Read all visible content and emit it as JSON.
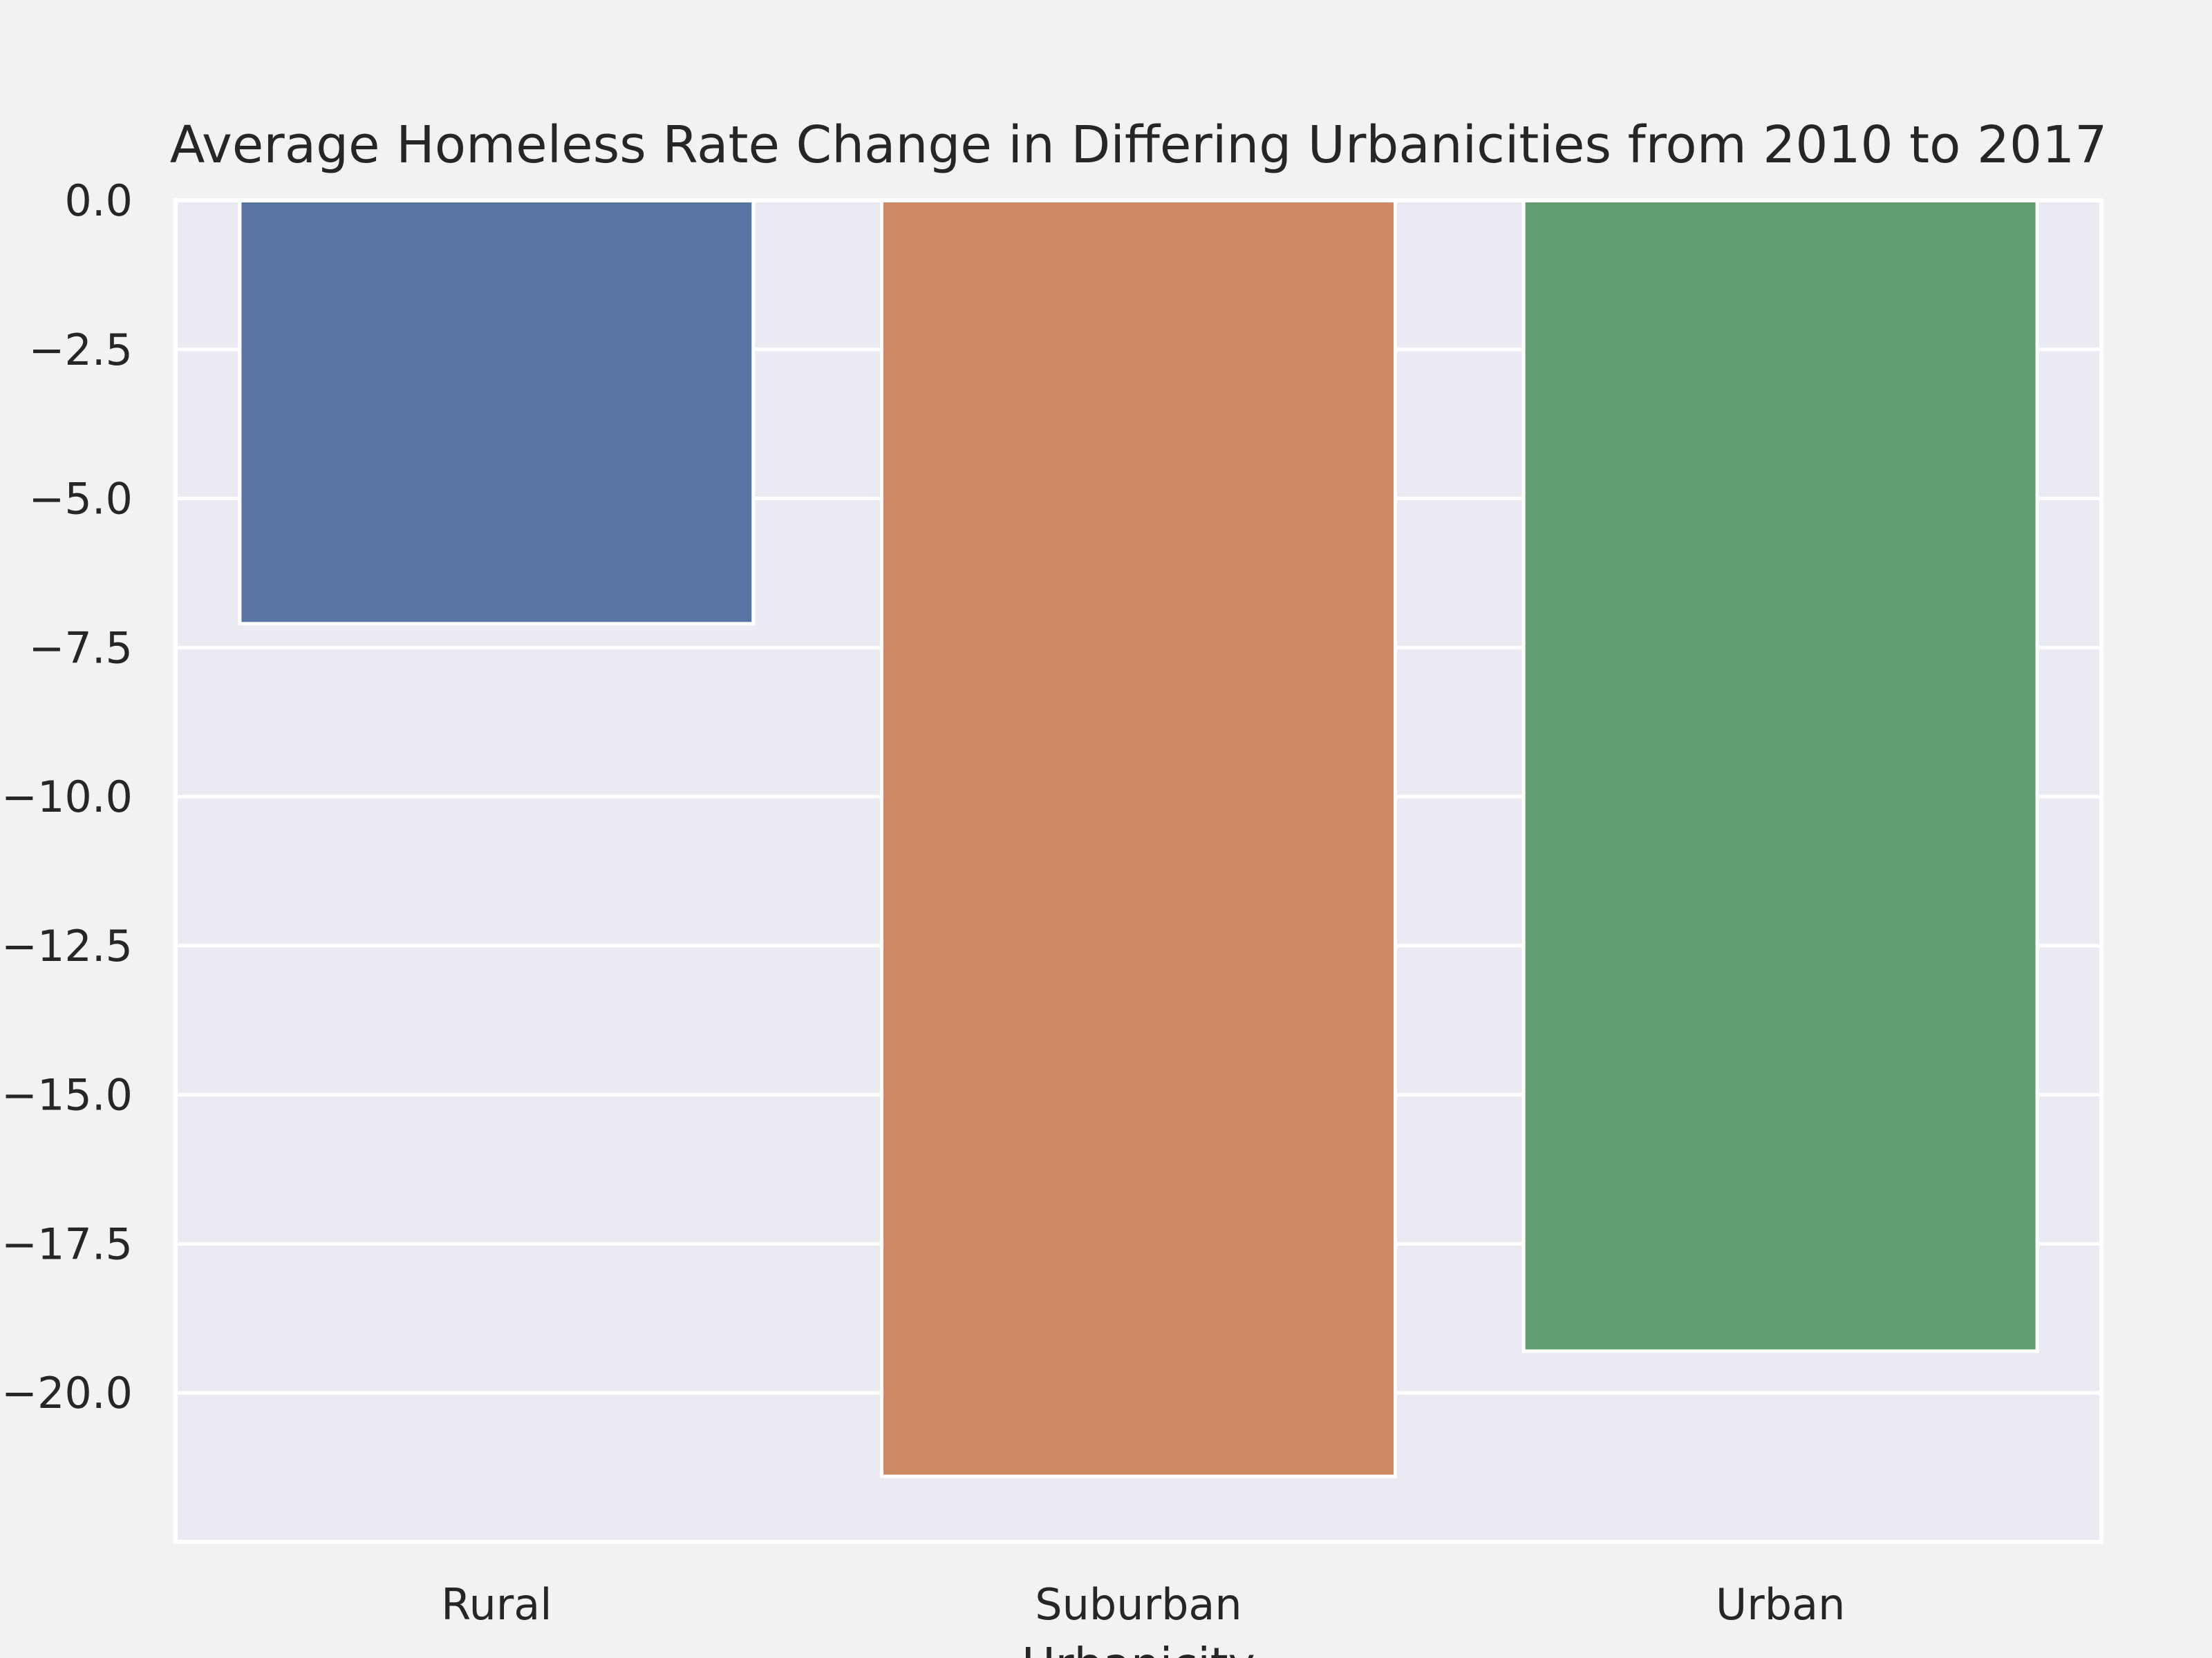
{
  "chart_data": {
    "type": "bar",
    "title": "Average Homeless Rate Change in Differing Urbanicities from 2010 to 2017",
    "xlabel": "Urbanicity",
    "ylabel": "",
    "categories": [
      "Rural",
      "Suburban",
      "Urban"
    ],
    "values": [
      -7.1,
      -21.4,
      -19.3
    ],
    "colors": [
      "#5975a4",
      "#cc8963",
      "#5f9e6e"
    ],
    "ylim": [
      -22.5,
      0
    ],
    "yticks": [
      0,
      -2.5,
      -5,
      -7.5,
      -10,
      -12.5,
      -15,
      -17.5,
      -20
    ],
    "ytick_labels": [
      "0.0",
      "−2.5",
      "−5.0",
      "−7.5",
      "−10.0",
      "−12.5",
      "−15.0",
      "−17.5",
      "−20.0"
    ],
    "grid": true,
    "background": "#eaeaf2",
    "figure_background": "#f2f2f2",
    "grid_color": "#ffffff"
  }
}
